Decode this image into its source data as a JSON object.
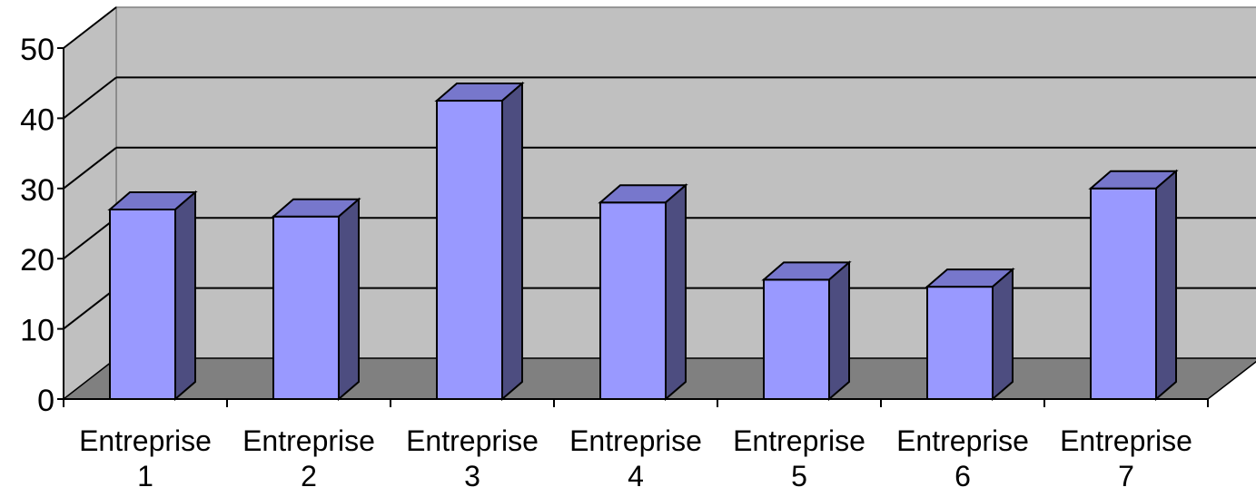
{
  "chart_data": {
    "type": "bar",
    "title": "",
    "xlabel": "",
    "ylabel": "",
    "categories": [
      "Entreprise 1",
      "Entreprise 2",
      "Entreprise 3",
      "Entreprise 4",
      "Entreprise 5",
      "Entreprise 6",
      "Entreprise 7"
    ],
    "category_lines": [
      [
        "Entreprise",
        "1"
      ],
      [
        "Entreprise",
        "2"
      ],
      [
        "Entreprise",
        "3"
      ],
      [
        "Entreprise",
        "4"
      ],
      [
        "Entreprise",
        "5"
      ],
      [
        "Entreprise",
        "6"
      ],
      [
        "Entreprise",
        "7"
      ]
    ],
    "values": [
      27,
      26,
      42.5,
      28,
      17,
      16,
      30
    ],
    "ylim": [
      0,
      50
    ],
    "yticks": [
      "0",
      "10",
      "20",
      "30",
      "40",
      "50"
    ],
    "grid": true,
    "legend": "none",
    "style": "3d-column",
    "colors": {
      "bar_front": "#9999ff",
      "bar_top": "#7777cc",
      "bar_side": "#4d4d80",
      "back_wall": "#c0c0c0",
      "floor": "#808080",
      "grid": "#000000"
    }
  }
}
